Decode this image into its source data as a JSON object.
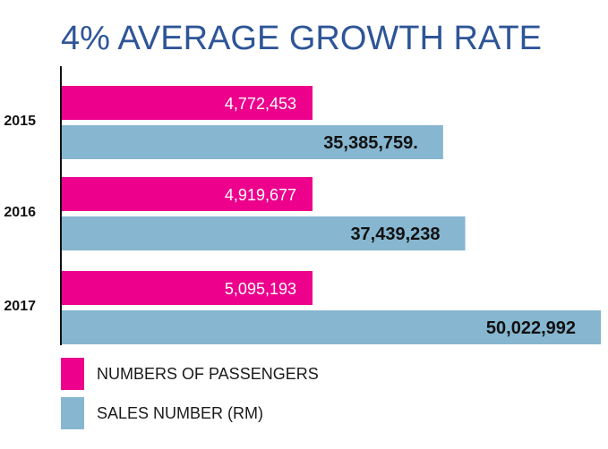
{
  "chart_data": {
    "type": "bar",
    "orientation": "horizontal",
    "title": "4% AVERAGE GROWTH RATE",
    "categories": [
      "2015",
      "2016",
      "2017"
    ],
    "series": [
      {
        "name": "NUMBERS OF PASSENGERS",
        "color": "#ec008c",
        "values": [
          4772453,
          4919677,
          5095193
        ],
        "labels": [
          "4,772,453",
          "4,919,677",
          "5,095,193"
        ]
      },
      {
        "name": "SALES NUMBER (RM)",
        "color": "#86b6d0",
        "values": [
          35385759,
          37439238,
          50022992
        ],
        "labels": [
          "35,385,759.",
          "37,439,238",
          "50,022,992"
        ]
      }
    ],
    "legend_position": "bottom-left",
    "grid": false
  }
}
